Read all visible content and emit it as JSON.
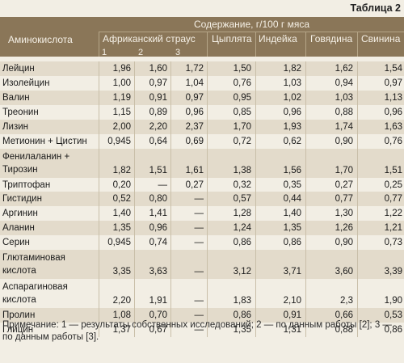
{
  "caption": "Таблица 2",
  "header": {
    "amino": "Аминокислота",
    "content": "Содержание, г/100 г мяса",
    "ostrich": "Африканский страус",
    "sub1": "1",
    "sub2": "2",
    "sub3": "3",
    "chicken": "Цыплята",
    "turkey": "Индейка",
    "beef": "Говядина",
    "pork": "Свинина"
  },
  "rows": [
    {
      "name": [
        "Лейцин"
      ],
      "v": [
        "1,96",
        "1,60",
        "1,72",
        "1,50",
        "1,82",
        "1,62",
        "1,54"
      ]
    },
    {
      "name": [
        "Изолейцин"
      ],
      "v": [
        "1,00",
        "0,97",
        "1,04",
        "0,76",
        "1,03",
        "0,94",
        "0,97"
      ]
    },
    {
      "name": [
        "Валин"
      ],
      "v": [
        "1,19",
        "0,91",
        "0,97",
        "0,95",
        "1,02",
        "1,03",
        "1,13"
      ]
    },
    {
      "name": [
        "Треонин"
      ],
      "v": [
        "1,15",
        "0,89",
        "0,96",
        "0,85",
        "0,96",
        "0,88",
        "0,96"
      ]
    },
    {
      "name": [
        "Лизин"
      ],
      "v": [
        "2,00",
        "2,20",
        "2,37",
        "1,70",
        "1,93",
        "1,74",
        "1,63"
      ]
    },
    {
      "name": [
        "Метионин + Цистин"
      ],
      "v": [
        "0,945",
        "0,64",
        "0,69",
        "0,72",
        "0,62",
        "0,90",
        "0,76"
      ]
    },
    {
      "name": [
        "Фенилаланин +",
        "Тирозин"
      ],
      "v": [
        "1,82",
        "1,51",
        "1,61",
        "1,38",
        "1,56",
        "1,70",
        "1,51"
      ]
    },
    {
      "name": [
        "Триптофан"
      ],
      "v": [
        "0,20",
        "—",
        "0,27",
        "0,32",
        "0,35",
        "0,27",
        "0,25"
      ]
    },
    {
      "name": [
        "Гистидин"
      ],
      "v": [
        "0,52",
        "0,80",
        "—",
        "0,57",
        "0,44",
        "0,77",
        "0,77"
      ]
    },
    {
      "name": [
        "Аргинин"
      ],
      "v": [
        "1,40",
        "1,41",
        "—",
        "1,28",
        "1,40",
        "1,30",
        "1,22"
      ]
    },
    {
      "name": [
        "Аланин"
      ],
      "v": [
        "1,35",
        "0,96",
        "—",
        "1,24",
        "1,35",
        "1,26",
        "1,21"
      ]
    },
    {
      "name": [
        "Серин"
      ],
      "v": [
        "0,945",
        "0,74",
        "—",
        "0,86",
        "0,86",
        "0,90",
        "0,73"
      ]
    },
    {
      "name": [
        "Глютаминовая",
        "кислота"
      ],
      "v": [
        "3,35",
        "3,63",
        "—",
        "3,12",
        "3,71",
        "3,60",
        "3,39"
      ]
    },
    {
      "name": [
        "Аспарагиновая",
        "кислота"
      ],
      "v": [
        "2,20",
        "1,91",
        "—",
        "1,83",
        "2,10",
        "2,3",
        "1,90"
      ]
    },
    {
      "name": [
        "Пролин"
      ],
      "v": [
        "1,08",
        "0,70",
        "—",
        "0,86",
        "0,91",
        "0,66",
        "0,53"
      ]
    },
    {
      "name": [
        "Глицин"
      ],
      "v": [
        "1,37",
        "0,67",
        "—",
        "1,35",
        "1,31",
        "0,88",
        "0,86"
      ]
    }
  ],
  "note": "Примечание: 1 — результаты собственных исследований; 2 — по данным работы [2]; 3 — по данным работы [3]."
}
